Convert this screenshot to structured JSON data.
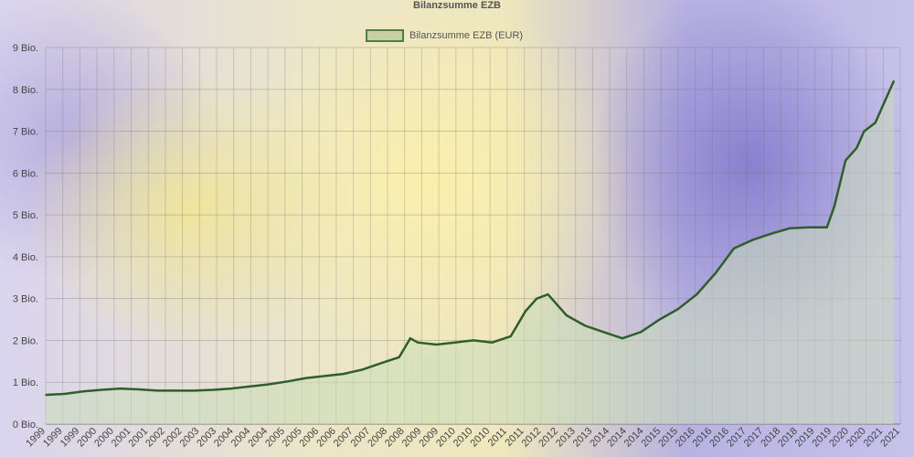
{
  "chart_data": {
    "type": "area",
    "title": "Bilanzsumme EZB",
    "legend": {
      "placement": "top",
      "entries": [
        "Bilanzsumme EZB (EUR)"
      ]
    },
    "ylim": [
      0,
      9
    ],
    "yticks": [
      "0 Bio.",
      "1 Bio.",
      "2 Bio.",
      "3 Bio.",
      "4 Bio.",
      "5 Bio.",
      "6 Bio.",
      "7 Bio.",
      "8 Bio.",
      "9 Bio."
    ],
    "grid": true,
    "xticks": [
      "1999",
      "1999",
      "1999",
      "2000",
      "2000",
      "2001",
      "2001",
      "2002",
      "2002",
      "2003",
      "2003",
      "2004",
      "2004",
      "2004",
      "2005",
      "2005",
      "2006",
      "2006",
      "2007",
      "2007",
      "2008",
      "2008",
      "2009",
      "2009",
      "2010",
      "2010",
      "2010",
      "2011",
      "2011",
      "2012",
      "2012",
      "2013",
      "2013",
      "2014",
      "2014",
      "2014",
      "2015",
      "2015",
      "2016",
      "2016",
      "2016",
      "2017",
      "2017",
      "2018",
      "2018",
      "2019",
      "2019",
      "2020",
      "2020",
      "2021",
      "2021"
    ],
    "series": [
      {
        "name": "Bilanzsumme EZB (EUR)",
        "color": "#2f5e2a",
        "fill": "#c9dcb8",
        "x": [
          1999.0,
          1999.5,
          2000.0,
          2000.5,
          2001.0,
          2001.5,
          2002.0,
          2002.5,
          2003.0,
          2003.5,
          2004.0,
          2004.5,
          2005.0,
          2005.5,
          2006.0,
          2006.5,
          2007.0,
          2007.5,
          2008.0,
          2008.5,
          2008.8,
          2009.0,
          2009.5,
          2010.0,
          2010.5,
          2011.0,
          2011.5,
          2011.9,
          2012.2,
          2012.5,
          2013.0,
          2013.5,
          2014.0,
          2014.5,
          2015.0,
          2015.5,
          2016.0,
          2016.5,
          2017.0,
          2017.5,
          2018.0,
          2018.5,
          2019.0,
          2019.5,
          2020.0,
          2020.2,
          2020.5,
          2020.8,
          2021.0,
          2021.3,
          2021.6,
          2021.8
        ],
        "y": [
          0.7,
          0.72,
          0.78,
          0.82,
          0.85,
          0.83,
          0.8,
          0.8,
          0.8,
          0.82,
          0.85,
          0.9,
          0.95,
          1.02,
          1.1,
          1.15,
          1.2,
          1.3,
          1.45,
          1.6,
          2.05,
          1.95,
          1.9,
          1.95,
          2.0,
          1.95,
          2.1,
          2.7,
          3.0,
          3.1,
          2.6,
          2.35,
          2.2,
          2.05,
          2.2,
          2.5,
          2.75,
          3.1,
          3.6,
          4.2,
          4.4,
          4.55,
          4.68,
          4.7,
          4.7,
          5.2,
          6.3,
          6.6,
          7.0,
          7.2,
          7.8,
          8.2
        ]
      }
    ]
  }
}
